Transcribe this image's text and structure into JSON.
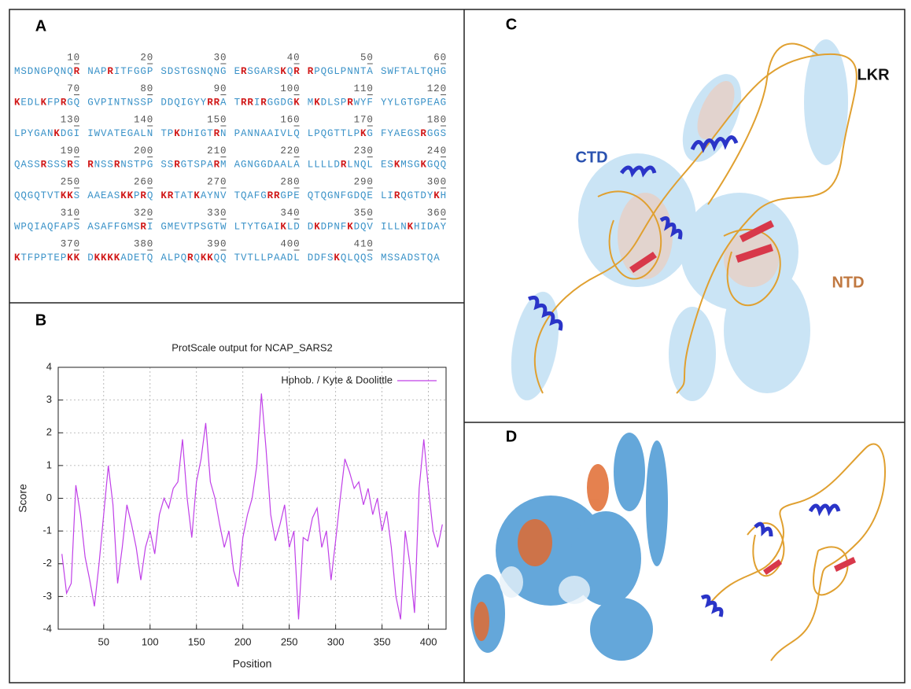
{
  "panels": {
    "a": {
      "label": "A",
      "rows": [
        {
          "numbers": [
            10,
            20,
            30,
            40,
            50,
            60
          ],
          "groups": [
            [
              {
                "text": "MSDNGPQNQ"
              },
              {
                "text": "R",
                "highlight": true
              }
            ],
            [
              {
                "text": "NAP"
              },
              {
                "text": "R",
                "highlight": true
              },
              {
                "text": "ITFGGP"
              }
            ],
            [
              {
                "text": "SDSTGSNQNG"
              }
            ],
            [
              {
                "text": "E"
              },
              {
                "text": "R",
                "highlight": true
              },
              {
                "text": "SGARS"
              },
              {
                "text": "K",
                "highlight": true
              },
              {
                "text": "Q"
              },
              {
                "text": "R",
                "highlight": true
              }
            ],
            [
              {
                "text": "R",
                "highlight": true
              },
              {
                "text": "PQGLPNNTA"
              }
            ],
            [
              {
                "text": "SWFTALTQHG"
              }
            ]
          ]
        },
        {
          "numbers": [
            70,
            80,
            90,
            100,
            110,
            120
          ],
          "groups": [
            [
              {
                "text": "K",
                "highlight": true
              },
              {
                "text": "EDL"
              },
              {
                "text": "K",
                "highlight": true
              },
              {
                "text": "FP"
              },
              {
                "text": "R",
                "highlight": true
              },
              {
                "text": "GQ"
              }
            ],
            [
              {
                "text": "GVPINTNSSP"
              }
            ],
            [
              {
                "text": "DDQIGYY"
              },
              {
                "text": "RR",
                "highlight": true
              },
              {
                "text": "A"
              }
            ],
            [
              {
                "text": "T"
              },
              {
                "text": "RR",
                "highlight": true
              },
              {
                "text": "I"
              },
              {
                "text": "R",
                "highlight": true
              },
              {
                "text": "GGDG"
              },
              {
                "text": "K",
                "highlight": true
              }
            ],
            [
              {
                "text": "M"
              },
              {
                "text": "K",
                "highlight": true
              },
              {
                "text": "DLSP"
              },
              {
                "text": "R",
                "highlight": true
              },
              {
                "text": "WYF"
              }
            ],
            [
              {
                "text": "YYLGTGPEAG"
              }
            ]
          ]
        },
        {
          "numbers": [
            130,
            140,
            150,
            160,
            170,
            180
          ],
          "groups": [
            [
              {
                "text": "LPYGAN"
              },
              {
                "text": "K",
                "highlight": true
              },
              {
                "text": "DGI"
              }
            ],
            [
              {
                "text": "IWVATEGALN"
              }
            ],
            [
              {
                "text": "TP"
              },
              {
                "text": "K",
                "highlight": true
              },
              {
                "text": "DHIGT"
              },
              {
                "text": "R",
                "highlight": true
              },
              {
                "text": "N"
              }
            ],
            [
              {
                "text": "PANNAAIVLQ"
              }
            ],
            [
              {
                "text": "LPQGTTLP"
              },
              {
                "text": "K",
                "highlight": true
              },
              {
                "text": "G"
              }
            ],
            [
              {
                "text": "FYAEGS"
              },
              {
                "text": "R",
                "highlight": true
              },
              {
                "text": "GGS"
              }
            ]
          ]
        },
        {
          "numbers": [
            190,
            200,
            210,
            220,
            230,
            240
          ],
          "groups": [
            [
              {
                "text": "QASS"
              },
              {
                "text": "R",
                "highlight": true
              },
              {
                "text": "SSS"
              },
              {
                "text": "R",
                "highlight": true
              },
              {
                "text": "S"
              }
            ],
            [
              {
                "text": "R",
                "highlight": true
              },
              {
                "text": "NSS"
              },
              {
                "text": "R",
                "highlight": true
              },
              {
                "text": "NSTPG"
              }
            ],
            [
              {
                "text": "SS"
              },
              {
                "text": "R",
                "highlight": true
              },
              {
                "text": "GTSPA"
              },
              {
                "text": "R",
                "highlight": true
              },
              {
                "text": "M"
              }
            ],
            [
              {
                "text": "AGNGGDAALA"
              }
            ],
            [
              {
                "text": "LLLLD"
              },
              {
                "text": "R",
                "highlight": true
              },
              {
                "text": "LNQL"
              }
            ],
            [
              {
                "text": "ES"
              },
              {
                "text": "K",
                "highlight": true
              },
              {
                "text": "MSG"
              },
              {
                "text": "K",
                "highlight": true
              },
              {
                "text": "GQQ"
              }
            ]
          ]
        },
        {
          "numbers": [
            250,
            260,
            270,
            280,
            290,
            300
          ],
          "groups": [
            [
              {
                "text": "QQGQTVT"
              },
              {
                "text": "KK",
                "highlight": true
              },
              {
                "text": "S"
              }
            ],
            [
              {
                "text": "AAEAS"
              },
              {
                "text": "KK",
                "highlight": true
              },
              {
                "text": "P"
              },
              {
                "text": "R",
                "highlight": true
              },
              {
                "text": "Q"
              }
            ],
            [
              {
                "text": "KR",
                "highlight": true
              },
              {
                "text": "TAT"
              },
              {
                "text": "K",
                "highlight": true
              },
              {
                "text": "AYNV"
              }
            ],
            [
              {
                "text": "TQAFG"
              },
              {
                "text": "RR",
                "highlight": true
              },
              {
                "text": "GPE"
              }
            ],
            [
              {
                "text": "QTQGNFGDQE"
              }
            ],
            [
              {
                "text": "LI"
              },
              {
                "text": "R",
                "highlight": true
              },
              {
                "text": "QGTDY"
              },
              {
                "text": "K",
                "highlight": true
              },
              {
                "text": "H"
              }
            ]
          ]
        },
        {
          "numbers": [
            310,
            320,
            330,
            340,
            350,
            360
          ],
          "groups": [
            [
              {
                "text": "WPQIAQFAPS"
              }
            ],
            [
              {
                "text": "ASAFFGMS"
              },
              {
                "text": "R",
                "highlight": true
              },
              {
                "text": "I"
              }
            ],
            [
              {
                "text": "GMEVTPSGTW"
              }
            ],
            [
              {
                "text": "LTYTGAI"
              },
              {
                "text": "K",
                "highlight": true
              },
              {
                "text": "LD"
              }
            ],
            [
              {
                "text": "D"
              },
              {
                "text": "K",
                "highlight": true
              },
              {
                "text": "DPNF"
              },
              {
                "text": "K",
                "highlight": true
              },
              {
                "text": "DQV"
              }
            ],
            [
              {
                "text": "ILLN"
              },
              {
                "text": "K",
                "highlight": true
              },
              {
                "text": "HIDAY"
              }
            ]
          ]
        },
        {
          "numbers": [
            370,
            380,
            390,
            400,
            410
          ],
          "groups": [
            [
              {
                "text": "K",
                "highlight": true
              },
              {
                "text": "TFPPTEP"
              },
              {
                "text": "KK",
                "highlight": true
              }
            ],
            [
              {
                "text": "D"
              },
              {
                "text": "KKKK",
                "highlight": true
              },
              {
                "text": "ADETQ"
              }
            ],
            [
              {
                "text": "ALPQ"
              },
              {
                "text": "R",
                "highlight": true
              },
              {
                "text": "Q"
              },
              {
                "text": "KK",
                "highlight": true
              },
              {
                "text": "QQ"
              }
            ],
            [
              {
                "text": "TVTLLPAADL"
              }
            ],
            [
              {
                "text": "DDFS"
              },
              {
                "text": "K",
                "highlight": true
              },
              {
                "text": "QLQQS"
              }
            ],
            [
              {
                "text": "MSSADSTQA"
              }
            ]
          ]
        }
      ]
    },
    "b": {
      "label": "B"
    },
    "c": {
      "label": "C",
      "annotations": [
        "CTD",
        "LKR",
        "NTD"
      ]
    },
    "d": {
      "label": "D"
    }
  },
  "chart_data": {
    "type": "line",
    "title": "ProtScale output for NCAP_SARS2",
    "x_label": "Position",
    "y_label": "Score",
    "x": [
      5,
      10,
      15,
      20,
      25,
      30,
      35,
      40,
      45,
      50,
      55,
      60,
      65,
      70,
      75,
      80,
      85,
      90,
      95,
      100,
      105,
      110,
      115,
      120,
      125,
      130,
      135,
      140,
      145,
      150,
      155,
      160,
      165,
      170,
      175,
      180,
      185,
      190,
      195,
      200,
      205,
      210,
      215,
      220,
      225,
      230,
      235,
      240,
      245,
      250,
      255,
      260,
      265,
      270,
      275,
      280,
      285,
      290,
      295,
      300,
      305,
      310,
      315,
      320,
      325,
      330,
      335,
      340,
      345,
      350,
      355,
      360,
      365,
      370,
      375,
      380,
      385,
      390,
      395,
      400,
      405,
      410,
      415
    ],
    "series": [
      {
        "name": "Hphob. / Kyte & Doolittle",
        "color": "#c040e8",
        "values": [
          -1.7,
          -2.9,
          -2.6,
          0.4,
          -0.5,
          -1.8,
          -2.5,
          -3.3,
          -2.0,
          -0.5,
          1.0,
          -0.2,
          -2.6,
          -1.5,
          -0.2,
          -0.8,
          -1.5,
          -2.5,
          -1.5,
          -1.0,
          -1.7,
          -0.5,
          0.0,
          -0.3,
          0.3,
          0.5,
          1.8,
          0.0,
          -1.2,
          0.5,
          1.2,
          2.3,
          0.5,
          0.0,
          -0.8,
          -1.5,
          -1.0,
          -2.2,
          -2.7,
          -1.2,
          -0.5,
          0.0,
          1.0,
          3.2,
          1.5,
          -0.5,
          -1.3,
          -0.8,
          -0.2,
          -1.5,
          -1.0,
          -3.7,
          -1.2,
          -1.3,
          -0.6,
          -0.3,
          -1.5,
          -1.0,
          -2.5,
          -1.3,
          0.0,
          1.2,
          0.8,
          0.3,
          0.5,
          -0.2,
          0.3,
          -0.5,
          0.0,
          -1.0,
          -0.4,
          -1.5,
          -3.0,
          -3.7,
          -1.0,
          -2.0,
          -3.5,
          0.3,
          1.8,
          0.3,
          -1.0,
          -1.5,
          -0.8
        ]
      }
    ],
    "xlim": [
      1,
      419
    ],
    "xticks": [
      50,
      100,
      150,
      200,
      250,
      300,
      350,
      400
    ],
    "ylim": [
      -4,
      4
    ],
    "yticks": [
      -4,
      -3,
      -2,
      -1,
      0,
      1,
      2,
      3,
      4
    ],
    "grid": true,
    "legend": "top-right"
  }
}
